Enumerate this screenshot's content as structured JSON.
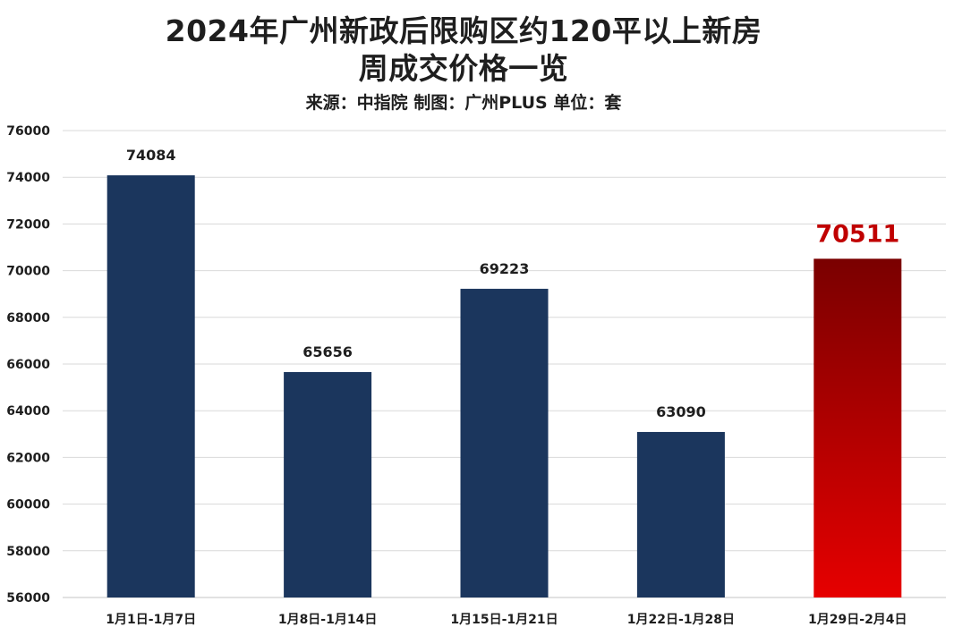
{
  "chart_data": {
    "type": "bar",
    "title": [
      "2024年广州新政后限购区约120平以上新房",
      "周成交价格一览"
    ],
    "subtitle": "来源：中指院 制图：广州PLUS 单位：套",
    "categories": [
      "1月1日-1月7日",
      "1月8日-1月14日",
      "1月15日-1月21日",
      "1月22日-1月28日",
      "1月29日-2月4日"
    ],
    "values": [
      74084,
      65656,
      69223,
      63090,
      70511
    ],
    "highlight_index": 4,
    "ylim": [
      56000,
      76000
    ],
    "yticks": [
      56000,
      58000,
      60000,
      62000,
      64000,
      66000,
      68000,
      70000,
      72000,
      74000,
      76000
    ],
    "grid": true,
    "colors": {
      "bar": "#1b365d",
      "highlight_top": "#7a0000",
      "highlight_bottom": "#e60000",
      "highlight_label": "#c00000",
      "grid": "#d9d9d9"
    }
  }
}
